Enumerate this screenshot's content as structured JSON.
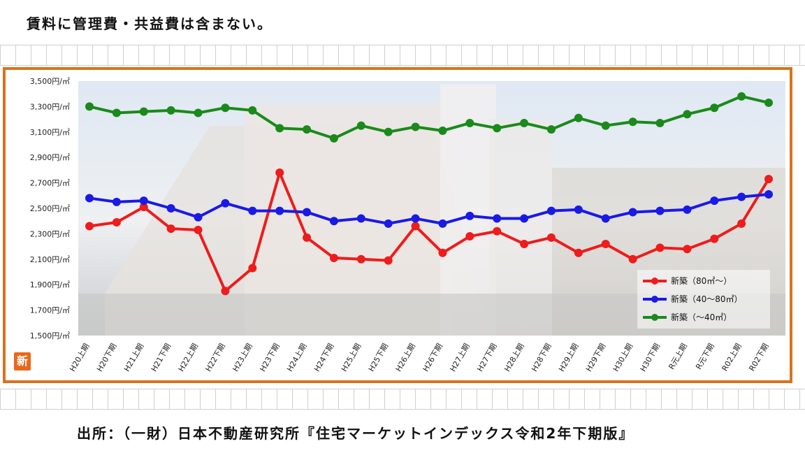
{
  "header": {
    "note": "賃料に管理費・共益費は含まない。"
  },
  "footer": {
    "source": "出所：（一財）日本不動産研究所『住宅マーケットインデックス令和2年下期版』"
  },
  "badge": {
    "label": "新"
  },
  "colors": {
    "frame": "#d9731e",
    "red": "#ee1c1c",
    "blue": "#1a1ae6",
    "green": "#1a8a1a"
  },
  "chart_data": {
    "type": "line",
    "ylim": [
      1500,
      3500
    ],
    "y_ticks": [
      1500,
      1700,
      1900,
      2100,
      2300,
      2500,
      2700,
      2900,
      3100,
      3300,
      3500
    ],
    "y_tick_labels": [
      "1,500円/㎡",
      "1,700円/㎡",
      "1,900円/㎡",
      "2,100円/㎡",
      "2,300円/㎡",
      "2,500円/㎡",
      "2,700円/㎡",
      "2,900円/㎡",
      "3,100円/㎡",
      "3,300円/㎡",
      "3,500円/㎡"
    ],
    "categories": [
      "H20上期",
      "H20下期",
      "H21上期",
      "H21下期",
      "H22上期",
      "H22下期",
      "H23上期",
      "H23下期",
      "H24上期",
      "H24下期",
      "H25上期",
      "H25下期",
      "H26上期",
      "H26下期",
      "H27上期",
      "H27下期",
      "H28上期",
      "H28下期",
      "H29上期",
      "H29下期",
      "H30上期",
      "H30下期",
      "R元上期",
      "R元下期",
      "R02上期",
      "R02下期"
    ],
    "series": [
      {
        "name": "新築（80㎡～）",
        "color": "#ee1c1c",
        "values": [
          2360,
          2390,
          2510,
          2340,
          2330,
          1850,
          2030,
          2780,
          2270,
          2110,
          2100,
          2090,
          2360,
          2150,
          2280,
          2320,
          2220,
          2270,
          2150,
          2220,
          2100,
          2190,
          2180,
          2260,
          2380,
          2730
        ]
      },
      {
        "name": "新築（40～80㎡）",
        "color": "#1a1ae6",
        "values": [
          2580,
          2550,
          2560,
          2500,
          2430,
          2540,
          2480,
          2480,
          2470,
          2400,
          2420,
          2380,
          2420,
          2380,
          2440,
          2420,
          2420,
          2480,
          2490,
          2420,
          2470,
          2480,
          2490,
          2560,
          2590,
          2610
        ]
      },
      {
        "name": "新築（～40㎡）",
        "color": "#1a8a1a",
        "values": [
          3300,
          3250,
          3260,
          3270,
          3250,
          3290,
          3270,
          3130,
          3120,
          3050,
          3150,
          3100,
          3140,
          3110,
          3170,
          3130,
          3170,
          3120,
          3210,
          3150,
          3180,
          3170,
          3240,
          3290,
          3380,
          3330
        ]
      }
    ],
    "legend_position": "bottom-right"
  }
}
